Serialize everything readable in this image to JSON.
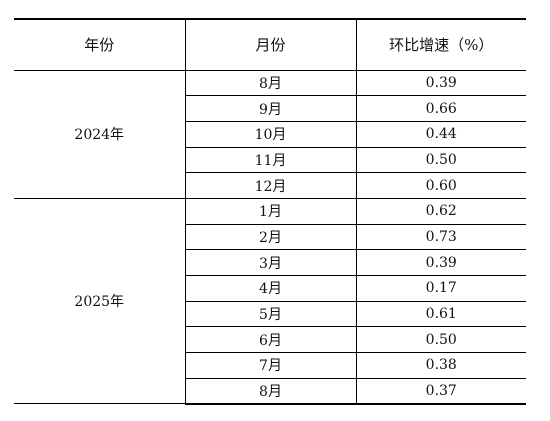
{
  "table": {
    "headers": [
      "年份",
      "月份",
      "环比增速（%）"
    ],
    "groups": [
      {
        "year": "2024年",
        "rows": [
          {
            "month": "8月",
            "value": "0.39"
          },
          {
            "month": "9月",
            "value": "0.66"
          },
          {
            "month": "10月",
            "value": "0.44"
          },
          {
            "month": "11月",
            "value": "0.50"
          },
          {
            "month": "12月",
            "value": "0.60"
          }
        ]
      },
      {
        "year": "2025年",
        "rows": [
          {
            "month": "1月",
            "value": "0.62"
          },
          {
            "month": "2月",
            "value": "0.73"
          },
          {
            "month": "3月",
            "value": "0.39"
          },
          {
            "month": "4月",
            "value": "0.17"
          },
          {
            "month": "5月",
            "value": "0.61"
          },
          {
            "month": "6月",
            "value": "0.50"
          },
          {
            "month": "7月",
            "value": "0.38"
          },
          {
            "month": "8月",
            "value": "0.37"
          }
        ]
      }
    ]
  }
}
